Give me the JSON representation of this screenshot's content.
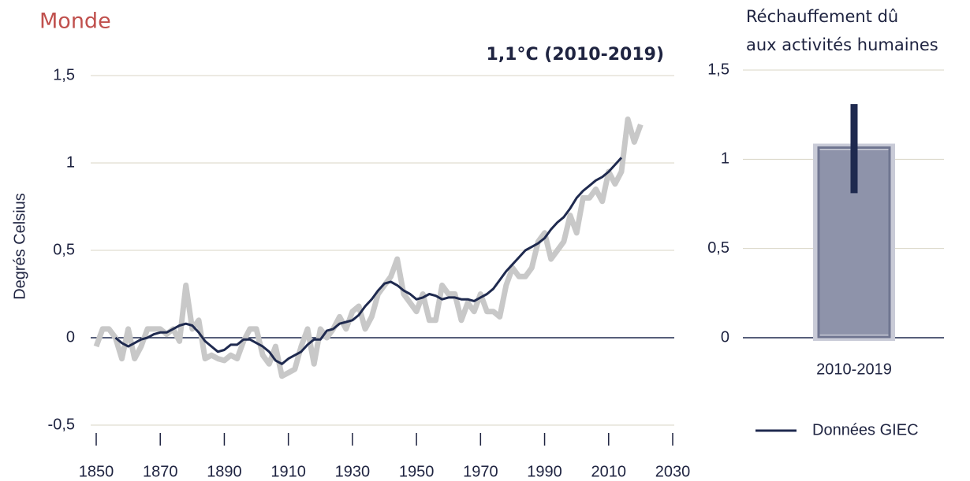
{
  "chart_data": [
    {
      "type": "line",
      "title": "Monde",
      "annotation": "1,1°C (2010-2019)",
      "ylabel": "Degrés Celsius",
      "x": [
        1850,
        1852,
        1854,
        1856,
        1858,
        1860,
        1862,
        1864,
        1866,
        1868,
        1870,
        1872,
        1874,
        1876,
        1878,
        1880,
        1882,
        1884,
        1886,
        1888,
        1890,
        1892,
        1894,
        1896,
        1898,
        1900,
        1902,
        1904,
        1906,
        1908,
        1910,
        1912,
        1914,
        1916,
        1918,
        1920,
        1922,
        1924,
        1926,
        1928,
        1930,
        1932,
        1934,
        1936,
        1938,
        1940,
        1942,
        1944,
        1946,
        1948,
        1950,
        1952,
        1954,
        1956,
        1958,
        1960,
        1962,
        1964,
        1966,
        1968,
        1970,
        1972,
        1974,
        1976,
        1978,
        1980,
        1982,
        1984,
        1986,
        1988,
        1990,
        1992,
        1994,
        1996,
        1998,
        2000,
        2002,
        2004,
        2006,
        2008,
        2010,
        2012,
        2014,
        2016,
        2018,
        2020
      ],
      "series": [
        {
          "color": "#c8c8c8",
          "values": [
            -0.05,
            0.05,
            0.05,
            0.0,
            -0.12,
            0.05,
            -0.12,
            -0.05,
            0.05,
            0.05,
            0.05,
            0.02,
            0.05,
            -0.02,
            0.3,
            0.05,
            0.1,
            -0.12,
            -0.1,
            -0.12,
            -0.13,
            -0.1,
            -0.12,
            -0.02,
            0.05,
            0.05,
            -0.1,
            -0.15,
            -0.05,
            -0.22,
            -0.2,
            -0.18,
            -0.05,
            0.05,
            -0.15,
            0.05,
            0.0,
            0.05,
            0.12,
            0.05,
            0.15,
            0.18,
            0.05,
            0.12,
            0.25,
            0.3,
            0.35,
            0.45,
            0.25,
            0.2,
            0.15,
            0.25,
            0.1,
            0.1,
            0.3,
            0.25,
            0.25,
            0.1,
            0.2,
            0.15,
            0.25,
            0.15,
            0.15,
            0.12,
            0.3,
            0.4,
            0.35,
            0.35,
            0.4,
            0.55,
            0.6,
            0.45,
            0.5,
            0.55,
            0.7,
            0.6,
            0.8,
            0.8,
            0.85,
            0.78,
            0.95,
            0.88,
            0.95,
            1.25,
            1.12,
            1.22
          ]
        },
        {
          "name": "Données GIEC",
          "color": "#1f2a4f",
          "values": [
            null,
            null,
            null,
            0.0,
            -0.03,
            -0.05,
            -0.03,
            -0.01,
            0.0,
            0.02,
            0.03,
            0.03,
            0.05,
            0.07,
            0.08,
            0.07,
            0.03,
            -0.02,
            -0.05,
            -0.08,
            -0.07,
            -0.04,
            -0.04,
            -0.01,
            -0.01,
            -0.03,
            -0.05,
            -0.08,
            -0.13,
            -0.15,
            -0.12,
            -0.1,
            -0.08,
            -0.04,
            -0.01,
            -0.01,
            0.04,
            0.05,
            0.08,
            0.09,
            0.1,
            0.13,
            0.18,
            0.22,
            0.27,
            0.31,
            0.32,
            0.3,
            0.27,
            0.25,
            0.22,
            0.23,
            0.25,
            0.24,
            0.22,
            0.23,
            0.23,
            0.22,
            0.22,
            0.21,
            0.23,
            0.25,
            0.28,
            0.33,
            0.38,
            0.42,
            0.46,
            0.5,
            0.52,
            0.54,
            0.57,
            0.62,
            0.66,
            0.69,
            0.74,
            0.8,
            0.84,
            0.87,
            0.9,
            0.92,
            0.95,
            0.99,
            1.03,
            null,
            null,
            null
          ]
        }
      ],
      "xlim": [
        1850,
        2030
      ],
      "xticks": [
        1850,
        1870,
        1890,
        1910,
        1930,
        1950,
        1970,
        1990,
        2010,
        2030
      ],
      "ylim": [
        -0.5,
        1.5
      ],
      "yticks": [
        {
          "value": -0.5,
          "label": "-0,5"
        },
        0,
        {
          "value": 0.5,
          "label": "0,5"
        },
        1,
        {
          "value": 1.5,
          "label": "1,5"
        }
      ],
      "grid": true,
      "legend": "bottom-right"
    },
    {
      "type": "bar",
      "title": [
        "Réchauffement dû",
        "aux activités humaines"
      ],
      "categories": [
        "2010-2019"
      ],
      "values": [
        1.07
      ],
      "error_low": [
        0.26
      ],
      "error_high": [
        0.24
      ],
      "color": "#8e93aa",
      "error_color": "#1f2a4f",
      "ylim": [
        0,
        1.5
      ],
      "yticks": [
        0,
        {
          "value": 0.5,
          "label": "0,5"
        },
        1,
        {
          "value": 1.5,
          "label": "1,5"
        }
      ],
      "grid": true
    }
  ]
}
